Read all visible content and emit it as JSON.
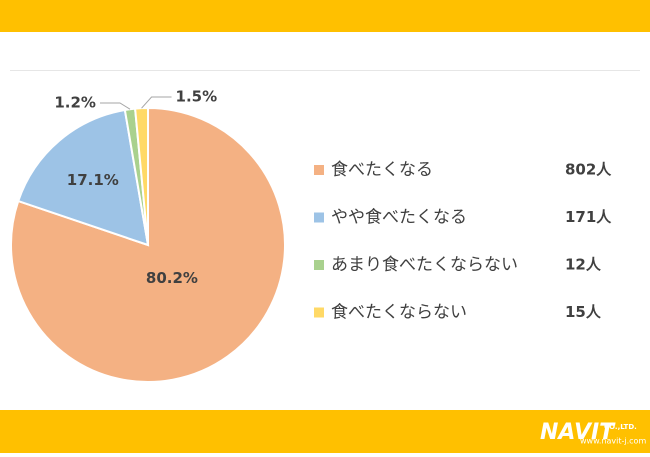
{
  "chart_data": {
    "type": "pie",
    "categories": [
      "食べたくなる",
      "やや食べたくなる",
      "あまり食べたくならない",
      "食べたくならない"
    ],
    "values": [
      80.2,
      17.1,
      1.2,
      1.5
    ],
    "value_labels": [
      "80.2%",
      "17.1%",
      "1.2%",
      "1.5%"
    ],
    "colors": [
      "#f4b183",
      "#9dc3e6",
      "#a9d18e",
      "#ffd966"
    ],
    "counts": [
      802,
      171,
      12,
      15
    ],
    "count_labels": [
      "802人",
      "171人",
      "12人",
      "15人"
    ]
  },
  "footer": {
    "logo": "NAVIT",
    "company": "CO.,LTD.",
    "url": "www.navit-j.com"
  }
}
